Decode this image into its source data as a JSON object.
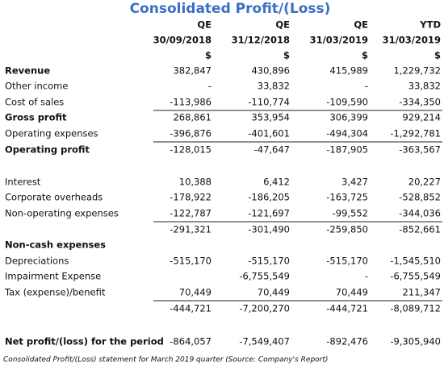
{
  "title": "Consolidated Profit/(Loss)",
  "columns": [
    {
      "period": "QE",
      "date": "30/09/2018",
      "unit": "$"
    },
    {
      "period": "QE",
      "date": "31/12/2018",
      "unit": "$"
    },
    {
      "period": "QE",
      "date": "31/03/2019",
      "unit": "$"
    },
    {
      "period": "YTD",
      "date": "31/03/2019",
      "unit": "$"
    }
  ],
  "rows": [
    {
      "label": "Revenue",
      "cells": [
        "382,847",
        "430,896",
        "415,989",
        "1,229,732"
      ]
    },
    {
      "label": "Other income",
      "cells": [
        "-",
        "33,832",
        "-",
        "33,832"
      ]
    },
    {
      "label": "Cost of sales",
      "cells": [
        "-113,986",
        "-110,774",
        "-109,590",
        "-334,350"
      ]
    },
    {
      "label": "Gross profit",
      "cells": [
        "268,861",
        "353,954",
        "306,399",
        "929,214"
      ]
    },
    {
      "label": "Operating expenses",
      "cells": [
        "-396,876",
        "-401,601",
        "-494,304",
        "-1,292,781"
      ]
    },
    {
      "label": "Operating profit",
      "cells": [
        "-128,015",
        "-47,647",
        "-187,905",
        "-363,567"
      ]
    },
    {
      "label": "Interest",
      "cells": [
        "10,388",
        "6,412",
        "3,427",
        "20,227"
      ]
    },
    {
      "label": "Corporate overheads",
      "cells": [
        "-178,922",
        "-186,205",
        "-163,725",
        "-528,852"
      ]
    },
    {
      "label": "Non-operating expenses",
      "cells": [
        "-122,787",
        "-121,697",
        "-99,552",
        "-344,036"
      ]
    },
    {
      "cells": [
        "-291,321",
        "-301,490",
        "-259,850",
        "-852,661"
      ]
    },
    {
      "label": "Non-cash expenses"
    },
    {
      "label": "Depreciations",
      "cells": [
        "-515,170",
        "-515,170",
        "-515,170",
        "-1,545,510"
      ]
    },
    {
      "label": "Impairment Expense",
      "cells": [
        "",
        "-6,755,549",
        "-",
        "-6,755,549"
      ]
    },
    {
      "label": "Tax (expense)/benefit",
      "cells": [
        "70,449",
        "70,449",
        "70,449",
        "211,347"
      ]
    },
    {
      "cells": [
        "-444,721",
        "-7,200,270",
        "-444,721",
        "-8,089,712"
      ]
    },
    {
      "label": "Net profit/(loss) for the period",
      "cells": [
        "-864,057",
        "-7,549,407",
        "-892,476",
        "-9,305,940"
      ]
    }
  ],
  "caption": "Consolidated Profit/(Loss) statement for March 2019 quarter (Source: Company's Report)"
}
